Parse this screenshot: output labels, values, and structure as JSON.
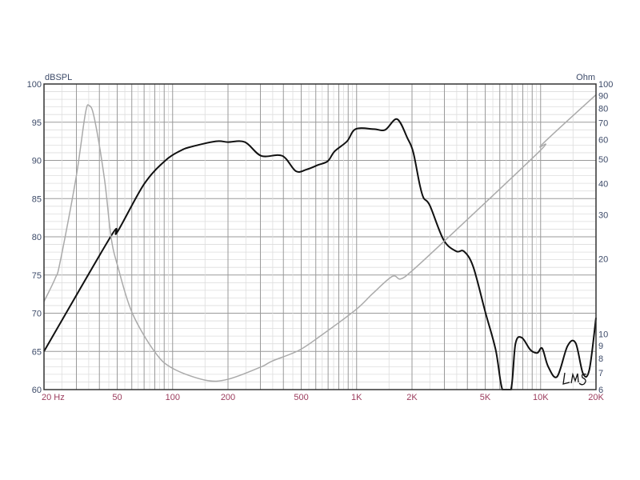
{
  "chart_data": {
    "type": "line",
    "title": "",
    "xlabel": "Hz",
    "ylabel_left": "dBSPL",
    "ylabel_right": "Ohm",
    "x_scale": "log",
    "xlim": [
      20,
      20000
    ],
    "ylim_left": [
      60,
      100
    ],
    "ylim_right": [
      6,
      100
    ],
    "y_right_scale": "log",
    "grid": true,
    "x_ticks": [
      {
        "value": 20,
        "label": "20  Hz"
      },
      {
        "value": 50,
        "label": "50"
      },
      {
        "value": 100,
        "label": "100"
      },
      {
        "value": 200,
        "label": "200"
      },
      {
        "value": 500,
        "label": "500"
      },
      {
        "value": 1000,
        "label": "1K"
      },
      {
        "value": 2000,
        "label": "2K"
      },
      {
        "value": 5000,
        "label": "5K"
      },
      {
        "value": 10000,
        "label": "10K"
      },
      {
        "value": 20000,
        "label": "20K"
      }
    ],
    "y_left_ticks": [
      "100",
      "95",
      "90",
      "85",
      "80",
      "75",
      "70",
      "65",
      "60"
    ],
    "y_right_ticks": [
      "100",
      "90",
      "80",
      "70",
      "60",
      "50",
      "40",
      "30",
      "20",
      "10",
      "9",
      "8",
      "7",
      "6"
    ],
    "series": [
      {
        "axis": "left",
        "color": "#111111",
        "x": [
          20,
          46,
          50,
          70,
          91.5,
          111,
          127,
          172,
          200,
          247,
          303,
          394,
          467,
          534,
          617,
          697,
          760,
          887,
          988,
          1240,
          1430,
          1660,
          1890,
          2030,
          2200,
          2310,
          2500,
          2970,
          3480,
          3830,
          4300,
          5000,
          5700,
          6200,
          6900,
          7300,
          7900,
          8800,
          9600,
          10200,
          11000,
          12300,
          14000,
          15500,
          17000,
          18400,
          20000
        ],
        "y": [
          65,
          80,
          80.6,
          86.9,
          90,
          91.3,
          91.8,
          92.5,
          92.4,
          92.4,
          90.6,
          90.6,
          88.6,
          88.8,
          89.4,
          89.9,
          91.2,
          92.5,
          94.1,
          94.1,
          94,
          95.4,
          92.9,
          91.1,
          86.9,
          85.1,
          84.1,
          79.6,
          78.1,
          78.1,
          76.1,
          70.2,
          65.2,
          60,
          60,
          66,
          66.8,
          65.2,
          64.8,
          65.4,
          63,
          61.7,
          65.7,
          66.1,
          62.1,
          62.6,
          69.4
        ]
      },
      {
        "axis": "right",
        "color": "#aaaaaa",
        "x": [
          20,
          23,
          24.5,
          29.8,
          33.5,
          35.2,
          37.6,
          42.6,
          46.3,
          50.4,
          60.2,
          79.9,
          99.9,
          150,
          200,
          303,
          347,
          484,
          632,
          988,
          1220,
          1560,
          1730,
          2000,
          2970,
          9900,
          10200,
          20000
        ],
        "y": [
          13.5,
          16.7,
          19.5,
          41.8,
          75.6,
          82,
          72.7,
          41.8,
          24.4,
          18.6,
          12.2,
          8.5,
          7.3,
          6.55,
          6.6,
          7.4,
          7.8,
          8.6,
          9.8,
          12.5,
          14.5,
          17,
          16.6,
          17.9,
          23.4,
          54,
          57.4,
          90.6
        ]
      }
    ]
  },
  "signature": "LMS",
  "colors": {
    "left_labels": "#3c4a68",
    "bottom_labels": "#9b3b5c",
    "grid_major": "#9a9a9a",
    "grid_minor": "#dddddd"
  }
}
